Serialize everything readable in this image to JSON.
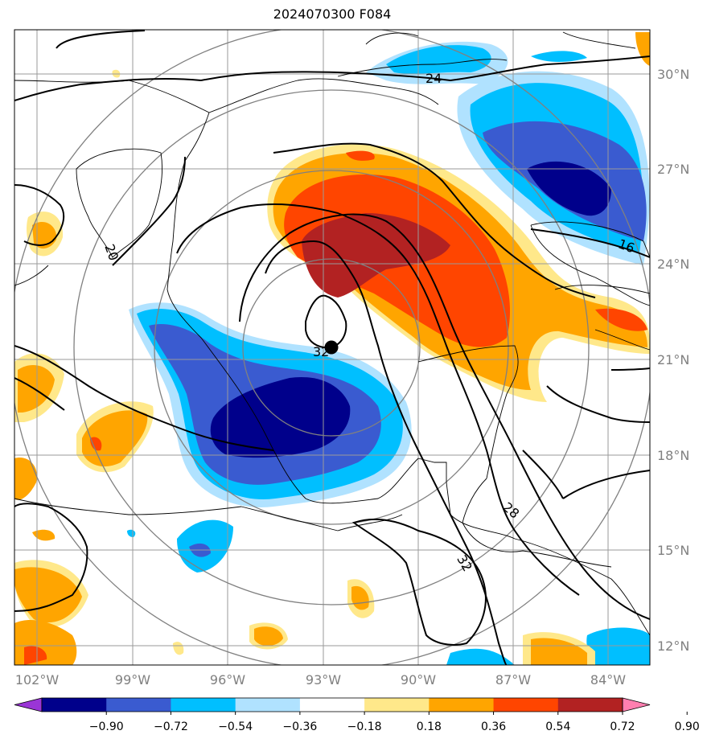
{
  "title": "2024070300 F084",
  "map": {
    "latitude_labels": [
      "30°N",
      "27°N",
      "24°N",
      "21°N",
      "18°N",
      "15°N",
      "12°N"
    ],
    "longitude_labels": [
      "102°W",
      "99°W",
      "96°W",
      "93°W",
      "90°W",
      "87°W",
      "84°W"
    ],
    "contour_labels": [
      "24",
      "20",
      "16",
      "32",
      "28",
      "32"
    ],
    "storm_center_marker": "black-dot"
  },
  "colorbar": {
    "tick_labels": [
      "−0.90",
      "−0.72",
      "−0.54",
      "−0.36",
      "−0.18",
      "0.18",
      "0.36",
      "0.54",
      "0.72",
      "0.90"
    ],
    "colors": [
      "#9a35d6",
      "#00008b",
      "#3a5bd0",
      "#00bfff",
      "#b0e2ff",
      "#ffffff",
      "#ffe88a",
      "#ffa500",
      "#ff4500",
      "#b22222",
      "#ff7fb0"
    ]
  },
  "palette": {
    "deep_blue": "#00008b",
    "mid_blue": "#3a5bd0",
    "sky_blue": "#00bfff",
    "pale_blue": "#b0e2ff",
    "pale_yellow": "#ffe88a",
    "orange": "#ffa500",
    "red_orange": "#ff4500",
    "dark_red": "#b22222"
  }
}
